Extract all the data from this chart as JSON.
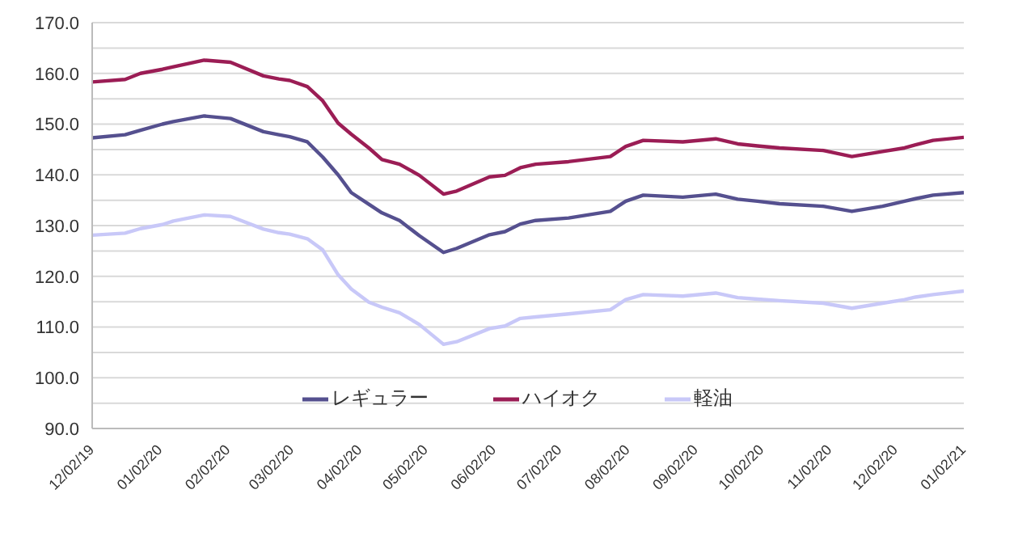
{
  "chart_data": {
    "type": "line",
    "x": [
      "2019-12-02",
      "2019-12-17",
      "2019-12-24",
      "2020-01-03",
      "2020-01-08",
      "2020-01-22",
      "2020-02-03",
      "2020-02-18",
      "2020-02-25",
      "2020-03-01",
      "2020-03-09",
      "2020-03-16",
      "2020-03-23",
      "2020-03-29",
      "2020-04-06",
      "2020-04-12",
      "2020-04-20",
      "2020-04-29",
      "2020-05-10",
      "2020-05-16",
      "2020-05-31",
      "2020-06-07",
      "2020-06-14",
      "2020-06-21",
      "2020-07-06",
      "2020-07-25",
      "2020-08-01",
      "2020-08-09",
      "2020-08-27",
      "2020-09-11",
      "2020-09-21",
      "2020-09-30",
      "2020-10-10",
      "2020-10-30",
      "2020-11-12",
      "2020-11-26",
      "2020-12-06",
      "2020-12-11",
      "2020-12-19",
      "2021-01-02"
    ],
    "series": [
      {
        "name": "レギュラー",
        "color": "#55508f",
        "values": [
          147.3,
          147.9,
          148.8,
          150.0,
          150.5,
          151.6,
          151.1,
          148.5,
          147.9,
          147.5,
          146.5,
          143.5,
          140.0,
          136.5,
          134.2,
          132.5,
          131.0,
          128.0,
          124.7,
          125.5,
          128.2,
          128.8,
          130.3,
          131.0,
          131.5,
          132.8,
          134.8,
          136.0,
          135.6,
          136.2,
          135.2,
          134.8,
          134.3,
          133.8,
          132.8,
          133.8,
          134.8,
          135.3,
          136.0,
          136.5
        ]
      },
      {
        "name": "ハイオク",
        "color": "#9b1d55",
        "values": [
          158.3,
          158.8,
          160.0,
          160.8,
          161.3,
          162.6,
          162.2,
          159.5,
          158.9,
          158.6,
          157.4,
          154.6,
          150.2,
          148.0,
          145.3,
          143.0,
          142.1,
          139.9,
          136.2,
          136.8,
          139.6,
          139.9,
          141.4,
          142.1,
          142.6,
          143.6,
          145.6,
          146.8,
          146.5,
          147.1,
          146.1,
          145.7,
          145.3,
          144.8,
          143.6,
          144.6,
          145.3,
          145.9,
          146.8,
          147.4
        ]
      },
      {
        "name": "軽油",
        "color": "#c8c8f8",
        "values": [
          128.1,
          128.5,
          129.4,
          130.2,
          130.9,
          132.1,
          131.8,
          129.3,
          128.6,
          128.3,
          127.4,
          125.2,
          120.3,
          117.5,
          114.9,
          113.9,
          112.8,
          110.5,
          106.6,
          107.1,
          109.7,
          110.2,
          111.7,
          112.0,
          112.6,
          113.4,
          115.4,
          116.4,
          116.1,
          116.7,
          115.8,
          115.5,
          115.2,
          114.7,
          113.7,
          114.7,
          115.4,
          115.9,
          116.4,
          117.1
        ]
      }
    ],
    "xlim": [
      "2019-12-02",
      "2021-01-02"
    ],
    "xticks": [
      {
        "value": "2019-12-02",
        "label": "12/02/19"
      },
      {
        "value": "2020-01-02",
        "label": "01/02/20"
      },
      {
        "value": "2020-02-02",
        "label": "02/02/20"
      },
      {
        "value": "2020-03-02",
        "label": "03/02/20"
      },
      {
        "value": "2020-04-02",
        "label": "04/02/20"
      },
      {
        "value": "2020-05-02",
        "label": "05/02/20"
      },
      {
        "value": "2020-06-02",
        "label": "06/02/20"
      },
      {
        "value": "2020-07-02",
        "label": "07/02/20"
      },
      {
        "value": "2020-08-02",
        "label": "08/02/20"
      },
      {
        "value": "2020-09-02",
        "label": "09/02/20"
      },
      {
        "value": "2020-10-02",
        "label": "10/02/20"
      },
      {
        "value": "2020-11-02",
        "label": "11/02/20"
      },
      {
        "value": "2020-12-02",
        "label": "12/02/20"
      },
      {
        "value": "2021-01-02",
        "label": "01/02/21"
      }
    ],
    "ylim": [
      90,
      170
    ],
    "yticks": [
      {
        "value": 90,
        "label": "90.0"
      },
      {
        "value": 95,
        "label": null
      },
      {
        "value": 100,
        "label": "100.0"
      },
      {
        "value": 105,
        "label": null
      },
      {
        "value": 110,
        "label": "110.0"
      },
      {
        "value": 115,
        "label": null
      },
      {
        "value": 120,
        "label": "120.0"
      },
      {
        "value": 125,
        "label": null
      },
      {
        "value": 130,
        "label": "130.0"
      },
      {
        "value": 135,
        "label": null
      },
      {
        "value": 140,
        "label": "140.0"
      },
      {
        "value": 145,
        "label": null
      },
      {
        "value": 150,
        "label": "150.0"
      },
      {
        "value": 155,
        "label": null
      },
      {
        "value": 160,
        "label": "160.0"
      },
      {
        "value": 165,
        "label": null
      },
      {
        "value": 170,
        "label": "170.0"
      }
    ],
    "grid": "y",
    "legend": "bottom",
    "marker": "none",
    "line_style": "solid"
  }
}
